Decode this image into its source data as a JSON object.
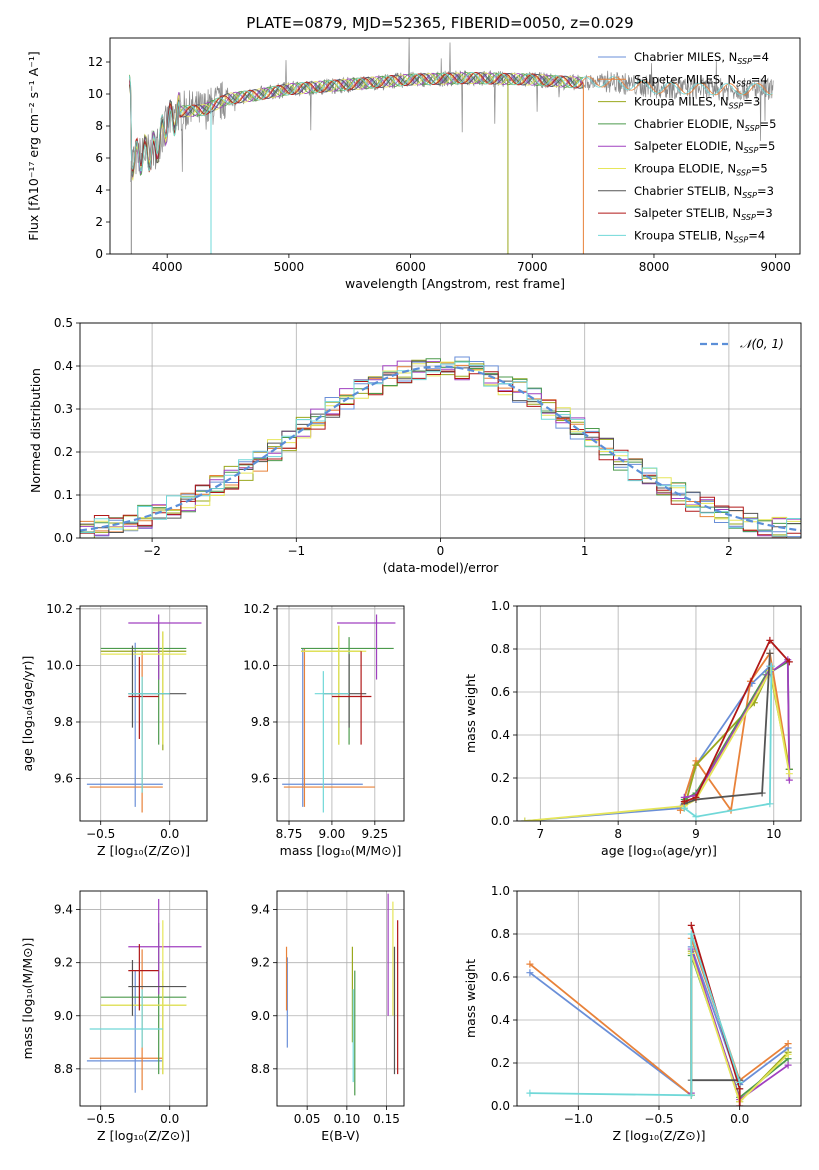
{
  "title": "PLATE=0879, MJD=52365, FIBERID=0050, z=0.029",
  "colors": [
    "#6a8fd8",
    "#e8823a",
    "#9aa81e",
    "#4c9a4c",
    "#a040c0",
    "#e6e65a",
    "#555555",
    "#b01818",
    "#70d8d8"
  ],
  "chart_data": [
    {
      "id": "spectrum",
      "type": "line",
      "xlabel": "wavelength [Angstrom, rest frame]",
      "ylabel": "Flux [fλ10⁻¹⁷ erg cm⁻² s⁻¹ A⁻¹]",
      "xlim": [
        3530,
        9200
      ],
      "ylim": [
        0,
        13.5
      ],
      "xticks": [
        4000,
        5000,
        6000,
        7000,
        8000,
        9000
      ],
      "yticks": [
        0,
        2,
        4,
        6,
        8,
        10,
        12
      ],
      "legend": "top-right",
      "legend_entries": [
        {
          "label": "Chabrier MILES, N",
          "sub": "SSP",
          "tail": "=4"
        },
        {
          "label": "Salpeter MILES, N",
          "sub": "SSP",
          "tail": "=4"
        },
        {
          "label": "Kroupa MILES, N",
          "sub": "SSP",
          "tail": "=3"
        },
        {
          "label": "Chabrier ELODIE, N",
          "sub": "SSP",
          "tail": "=5"
        },
        {
          "label": "Salpeter ELODIE, N",
          "sub": "SSP",
          "tail": "=5"
        },
        {
          "label": "Kroupa ELODIE, N",
          "sub": "SSP",
          "tail": "=5"
        },
        {
          "label": "Chabrier STELIB, N",
          "sub": "SSP",
          "tail": "=3"
        },
        {
          "label": "Salpeter STELIB, N",
          "sub": "SSP",
          "tail": "=3"
        },
        {
          "label": "Kroupa STELIB, N",
          "sub": "SSP",
          "tail": "=4"
        }
      ],
      "continuum": [
        [
          3700,
          5.8
        ],
        [
          3800,
          6.2
        ],
        [
          3900,
          6.5
        ],
        [
          4000,
          8.2
        ],
        [
          4100,
          8.9
        ],
        [
          4300,
          9.0
        ],
        [
          4500,
          9.7
        ],
        [
          4700,
          9.9
        ],
        [
          5000,
          10.3
        ],
        [
          5500,
          10.6
        ],
        [
          6000,
          10.9
        ],
        [
          6500,
          11.0
        ],
        [
          7000,
          10.9
        ],
        [
          7400,
          10.7
        ],
        [
          7600,
          10.8
        ],
        [
          8000,
          10.4
        ],
        [
          8500,
          10.3
        ],
        [
          9000,
          10.3
        ]
      ],
      "model_range": [
        3680,
        7420
      ],
      "model2_range": [
        7420,
        8980
      ],
      "drops": [
        [
          3700,
          0
        ],
        [
          4360,
          0
        ],
        [
          6800,
          0
        ],
        [
          7420,
          0
        ]
      ]
    },
    {
      "id": "residuals",
      "type": "histogram",
      "xlabel": "(data-model)/error",
      "ylabel": "Normed distribution",
      "xlim": [
        -2.5,
        2.5
      ],
      "ylim": [
        0,
        0.5
      ],
      "xticks": [
        -2,
        -1,
        0,
        1,
        2
      ],
      "yticks": [
        0.0,
        0.1,
        0.2,
        0.3,
        0.4,
        0.5
      ],
      "bin_width": 0.1,
      "reference_curve": "normal(0,1)",
      "legend_label": "𝒩(0, 1)",
      "legend": "top-right"
    },
    {
      "id": "age-vs-Z",
      "type": "scatter",
      "xlabel": "Z [log₁₀(Z/Z⊙)]",
      "ylabel": "age  [log₁₀(age/yr)]",
      "xlim": [
        -0.65,
        0.27
      ],
      "ylim": [
        9.45,
        10.21
      ],
      "xticks": [
        -0.5,
        0.0
      ],
      "yticks": [
        9.6,
        9.8,
        10.0,
        10.2
      ],
      "points": [
        {
          "x": -0.25,
          "y": 9.58,
          "xlo": -0.6,
          "xhi": -0.05,
          "ylo": 9.5,
          "yhi": 10.08
        },
        {
          "x": -0.2,
          "y": 9.57,
          "xlo": -0.58,
          "xhi": -0.05,
          "ylo": 9.48,
          "yhi": 10.05
        },
        {
          "x": -0.05,
          "y": 10.05,
          "xlo": -0.5,
          "xhi": 0.12,
          "ylo": 9.7,
          "yhi": 10.12
        },
        {
          "x": -0.08,
          "y": 10.06,
          "xlo": -0.5,
          "xhi": 0.12,
          "ylo": 9.72,
          "yhi": 10.15
        },
        {
          "x": -0.08,
          "y": 10.15,
          "xlo": -0.3,
          "xhi": 0.23,
          "ylo": 9.95,
          "yhi": 10.18
        },
        {
          "x": -0.05,
          "y": 10.04,
          "xlo": -0.5,
          "xhi": 0.12,
          "ylo": 9.72,
          "yhi": 10.12
        },
        {
          "x": -0.27,
          "y": 9.9,
          "xlo": -0.3,
          "xhi": 0.12,
          "ylo": 9.78,
          "yhi": 10.07
        },
        {
          "x": -0.22,
          "y": 9.89,
          "xlo": -0.3,
          "xhi": -0.08,
          "ylo": 9.74,
          "yhi": 10.03
        },
        {
          "x": -0.2,
          "y": 9.9,
          "xlo": -0.3,
          "xhi": 0.0,
          "ylo": 9.55,
          "yhi": 9.96
        }
      ]
    },
    {
      "id": "age-vs-mass",
      "type": "scatter",
      "xlabel": "mass [log₁₀(M/M⊙)]",
      "ylabel": "",
      "xlim": [
        8.68,
        9.42
      ],
      "ylim": [
        9.45,
        10.21
      ],
      "xticks": [
        8.75,
        9.0,
        9.25
      ],
      "yticks": [
        9.6,
        9.8,
        10.0,
        10.2
      ],
      "points": [
        {
          "x": 8.83,
          "y": 9.58,
          "xlo": 8.71,
          "xhi": 9.18,
          "ylo": 9.5,
          "yhi": 10.06
        },
        {
          "x": 8.84,
          "y": 9.57,
          "xlo": 8.72,
          "xhi": 9.25,
          "ylo": 9.5,
          "yhi": 10.06
        },
        {
          "x": 9.04,
          "y": 10.05,
          "xlo": 8.82,
          "xhi": 9.17,
          "ylo": 9.72,
          "yhi": 10.14
        },
        {
          "x": 9.1,
          "y": 10.06,
          "xlo": 8.82,
          "xhi": 9.36,
          "ylo": 9.72,
          "yhi": 10.1
        },
        {
          "x": 9.26,
          "y": 10.15,
          "xlo": 9.03,
          "xhi": 9.37,
          "ylo": 9.95,
          "yhi": 10.18
        },
        {
          "x": 9.04,
          "y": 10.05,
          "xlo": 8.82,
          "xhi": 9.2,
          "ylo": 9.72,
          "yhi": 10.14
        },
        {
          "x": 9.1,
          "y": 9.9,
          "xlo": 8.95,
          "xhi": 9.2,
          "ylo": 9.78,
          "yhi": 10.04
        },
        {
          "x": 9.17,
          "y": 9.89,
          "xlo": 9.0,
          "xhi": 9.23,
          "ylo": 9.72,
          "yhi": 10.05
        },
        {
          "x": 8.95,
          "y": 9.9,
          "xlo": 8.9,
          "xhi": 9.1,
          "ylo": 9.48,
          "yhi": 9.98
        }
      ]
    },
    {
      "id": "weight-vs-age",
      "type": "line",
      "xlabel": "age  [log₁₀(age/yr)]",
      "ylabel": "mass weight",
      "xlim": [
        6.7,
        10.35
      ],
      "ylim": [
        0,
        1
      ],
      "xticks": [
        7,
        8,
        9,
        10
      ],
      "yticks": [
        0.0,
        0.2,
        0.4,
        0.6,
        0.8,
        1.0
      ],
      "series": [
        [
          [
            6.8,
            0.0
          ],
          [
            8.8,
            0.06
          ],
          [
            9.0,
            0.26
          ],
          [
            9.72,
            0.64
          ],
          [
            9.95,
            0.72
          ],
          [
            10.2,
            0.24
          ]
        ],
        [
          [
            8.8,
            0.05
          ],
          [
            9.0,
            0.28
          ],
          [
            9.45,
            0.05
          ],
          [
            9.7,
            0.65
          ],
          [
            9.95,
            0.78
          ],
          [
            10.2,
            0.24
          ]
        ],
        [
          [
            8.85,
            0.06
          ],
          [
            9.0,
            0.26
          ],
          [
            9.75,
            0.55
          ],
          [
            9.95,
            0.7
          ],
          [
            10.2,
            0.24
          ]
        ],
        [
          [
            8.85,
            0.1
          ],
          [
            9.0,
            0.13
          ],
          [
            9.9,
            0.68
          ],
          [
            10.18,
            0.74
          ],
          [
            10.2,
            0.24
          ]
        ],
        [
          [
            8.85,
            0.11
          ],
          [
            9.0,
            0.12
          ],
          [
            9.92,
            0.68
          ],
          [
            10.18,
            0.75
          ],
          [
            10.2,
            0.19
          ]
        ],
        [
          [
            6.8,
            0.0
          ],
          [
            8.85,
            0.07
          ],
          [
            9.0,
            0.1
          ],
          [
            9.96,
            0.7
          ],
          [
            10.2,
            0.22
          ]
        ],
        [
          [
            8.85,
            0.08
          ],
          [
            9.0,
            0.1
          ],
          [
            9.85,
            0.13
          ],
          [
            9.95,
            0.78
          ]
        ],
        [
          [
            8.85,
            0.09
          ],
          [
            9.0,
            0.11
          ],
          [
            9.95,
            0.84
          ],
          [
            10.2,
            0.74
          ]
        ],
        [
          [
            8.85,
            0.06
          ],
          [
            9.0,
            0.02
          ],
          [
            9.95,
            0.08
          ],
          [
            9.97,
            0.72
          ]
        ]
      ]
    },
    {
      "id": "mass-vs-Z",
      "type": "scatter",
      "xlabel": "Z [log₁₀(Z/Z⊙)]",
      "ylabel": "mass [log₁₀(M/M⊙)]",
      "xlim": [
        -0.65,
        0.27
      ],
      "ylim": [
        8.66,
        9.47
      ],
      "xticks": [
        -0.5,
        0.0
      ],
      "yticks": [
        8.8,
        9.0,
        9.2,
        9.4
      ],
      "points": [
        {
          "x": -0.25,
          "y": 8.83,
          "xlo": -0.6,
          "xhi": -0.05,
          "ylo": 8.71,
          "yhi": 9.17
        },
        {
          "x": -0.2,
          "y": 8.84,
          "xlo": -0.58,
          "xhi": -0.05,
          "ylo": 8.72,
          "yhi": 9.25
        },
        {
          "x": -0.05,
          "y": 9.04,
          "xlo": -0.5,
          "xhi": 0.12,
          "ylo": 8.78,
          "yhi": 9.17
        },
        {
          "x": -0.08,
          "y": 9.07,
          "xlo": -0.5,
          "xhi": 0.12,
          "ylo": 8.78,
          "yhi": 9.35
        },
        {
          "x": -0.08,
          "y": 9.26,
          "xlo": -0.3,
          "xhi": 0.23,
          "ylo": 9.08,
          "yhi": 9.44
        },
        {
          "x": -0.05,
          "y": 9.04,
          "xlo": -0.5,
          "xhi": 0.12,
          "ylo": 8.78,
          "yhi": 9.36
        },
        {
          "x": -0.27,
          "y": 9.11,
          "xlo": -0.3,
          "xhi": 0.12,
          "ylo": 9.0,
          "yhi": 9.21
        },
        {
          "x": -0.22,
          "y": 9.17,
          "xlo": -0.3,
          "xhi": -0.08,
          "ylo": 9.02,
          "yhi": 9.27
        },
        {
          "x": -0.2,
          "y": 8.95,
          "xlo": -0.58,
          "xhi": -0.05,
          "ylo": 8.88,
          "yhi": 9.1
        }
      ]
    },
    {
      "id": "mass-vs-EBV",
      "type": "scatter",
      "xlabel": "E(B-V)",
      "ylabel": "",
      "xlim": [
        0.012,
        0.172
      ],
      "ylim": [
        8.66,
        9.47
      ],
      "xticks": [
        0.05,
        0.1,
        0.15
      ],
      "xtick_labels": [
        "0.05",
        "0.10",
        "0.15"
      ],
      "yticks": [
        8.8,
        9.0,
        9.2,
        9.4
      ],
      "points": [
        {
          "x": 0.025,
          "ylo": 8.88,
          "yhi": 9.22
        },
        {
          "x": 0.024,
          "ylo": 9.02,
          "yhi": 9.26
        },
        {
          "x": 0.107,
          "ylo": 8.9,
          "yhi": 9.26
        },
        {
          "x": 0.11,
          "ylo": 8.7,
          "yhi": 9.17
        },
        {
          "x": 0.152,
          "ylo": 9.0,
          "yhi": 9.46
        },
        {
          "x": 0.158,
          "ylo": 9.0,
          "yhi": 9.43
        },
        {
          "x": 0.16,
          "ylo": 8.78,
          "yhi": 9.26
        },
        {
          "x": 0.164,
          "ylo": 8.78,
          "yhi": 9.36
        },
        {
          "x": 0.108,
          "ylo": 8.75,
          "yhi": 9.1
        }
      ]
    },
    {
      "id": "weight-vs-Z",
      "type": "line",
      "xlabel": "Z [log₁₀(Z/Z⊙)]",
      "ylabel": "mass weight",
      "xlim": [
        -1.38,
        0.38
      ],
      "ylim": [
        0,
        1
      ],
      "xticks": [
        -1.0,
        -0.5,
        0.0
      ],
      "yticks": [
        0.0,
        0.2,
        0.4,
        0.6,
        0.8,
        1.0
      ],
      "series": [
        [
          [
            -1.3,
            0.62
          ],
          [
            -0.3,
            0.05
          ],
          [
            -0.3,
            0.74
          ],
          [
            0.0,
            0.1
          ],
          [
            0.3,
            0.27
          ]
        ],
        [
          [
            -1.3,
            0.66
          ],
          [
            -0.3,
            0.05
          ],
          [
            -0.3,
            0.78
          ],
          [
            0.0,
            0.12
          ],
          [
            0.3,
            0.29
          ]
        ],
        [
          [
            -0.3,
            0.05
          ],
          [
            -0.3,
            0.72
          ],
          [
            0.0,
            0.02
          ],
          [
            0.3,
            0.25
          ]
        ],
        [
          [
            -0.3,
            0.05
          ],
          [
            -0.3,
            0.7
          ],
          [
            0.0,
            0.04
          ],
          [
            0.3,
            0.22
          ]
        ],
        [
          [
            -0.3,
            0.06
          ],
          [
            -0.3,
            0.73
          ],
          [
            0.0,
            0.03
          ],
          [
            0.3,
            0.19
          ]
        ],
        [
          [
            -0.3,
            0.05
          ],
          [
            -0.3,
            0.71
          ],
          [
            0.0,
            0.02
          ],
          [
            0.3,
            0.24
          ]
        ],
        [
          [
            -0.3,
            0.12
          ],
          [
            0.0,
            0.12
          ],
          [
            0.0,
            0.08
          ]
        ],
        [
          [
            -0.3,
            0.84
          ],
          [
            0.0,
            0.08
          ],
          [
            0.0,
            0.0
          ]
        ],
        [
          [
            -1.3,
            0.06
          ],
          [
            -0.3,
            0.05
          ],
          [
            -0.3,
            0.8
          ],
          [
            0.0,
            0.11
          ]
        ]
      ]
    }
  ]
}
